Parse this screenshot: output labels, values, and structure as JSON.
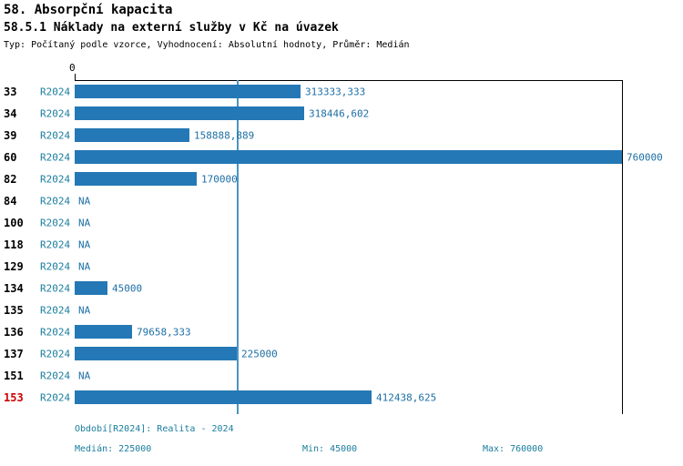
{
  "title": "58. Absorpční kapacita",
  "subtitle": "58.5.1 Náklady na externí služby v Kč na úvazek",
  "meta": "Typ: Počítaný podle vzorce, Vyhodnocení: Absolutní hodnoty, Průměr: Medián",
  "colors": {
    "bar": "#2478b5",
    "period_text": "#1a7d9e",
    "value_text": "#1d6fa5",
    "highlight_row": "#cc0000",
    "median_line": "#4d94c4"
  },
  "chart_data": {
    "type": "bar",
    "orientation": "horizontal",
    "title": "58.5.1 Náklady na externí služby v Kč na úvazek",
    "xlabel": "",
    "ylabel": "",
    "x_axis": {
      "zero_label": "0",
      "min": 0,
      "max": 760000
    },
    "grid": false,
    "median": 225000,
    "rows": [
      {
        "id": "33",
        "period": "R2024",
        "value": 313333.333,
        "label": "313333,333",
        "highlight": false
      },
      {
        "id": "34",
        "period": "R2024",
        "value": 318446.602,
        "label": "318446,602",
        "highlight": false
      },
      {
        "id": "39",
        "period": "R2024",
        "value": 158888.889,
        "label": "158888,889",
        "highlight": false
      },
      {
        "id": "60",
        "period": "R2024",
        "value": 760000,
        "label": "760000",
        "highlight": false
      },
      {
        "id": "82",
        "period": "R2024",
        "value": 170000,
        "label": "170000",
        "highlight": false
      },
      {
        "id": "84",
        "period": "R2024",
        "value": null,
        "label": "NA",
        "highlight": false
      },
      {
        "id": "100",
        "period": "R2024",
        "value": null,
        "label": "NA",
        "highlight": false
      },
      {
        "id": "118",
        "period": "R2024",
        "value": null,
        "label": "NA",
        "highlight": false
      },
      {
        "id": "129",
        "period": "R2024",
        "value": null,
        "label": "NA",
        "highlight": false
      },
      {
        "id": "134",
        "period": "R2024",
        "value": 45000,
        "label": "45000",
        "highlight": false
      },
      {
        "id": "135",
        "period": "R2024",
        "value": null,
        "label": "NA",
        "highlight": false
      },
      {
        "id": "136",
        "period": "R2024",
        "value": 79658.333,
        "label": "79658,333",
        "highlight": false
      },
      {
        "id": "137",
        "period": "R2024",
        "value": 225000,
        "label": "225000",
        "highlight": false
      },
      {
        "id": "151",
        "period": "R2024",
        "value": null,
        "label": "NA",
        "highlight": false
      },
      {
        "id": "153",
        "period": "R2024",
        "value": 412438.625,
        "label": "412438,625",
        "highlight": true
      }
    ],
    "footer": {
      "period_line": "Období[R2024]: Realita - 2024",
      "median_label": "Medián: 225000",
      "min_label": "Min: 45000",
      "max_label": "Max: 760000"
    }
  }
}
